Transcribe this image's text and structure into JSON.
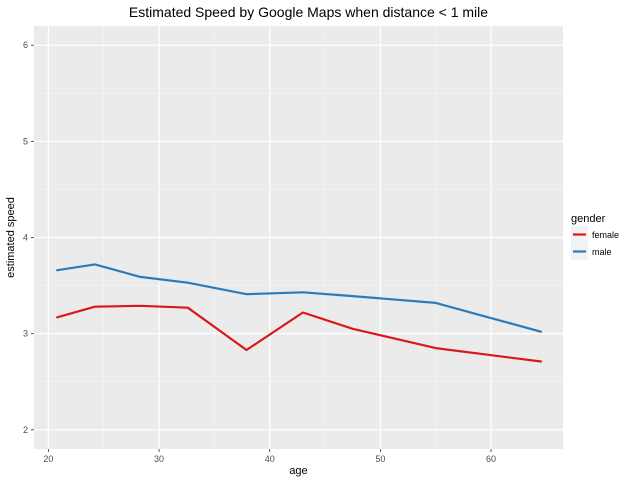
{
  "chart_data": {
    "type": "line",
    "title": "Estimated Speed by Google Maps when distance < 1 mile",
    "xlabel": "age",
    "ylabel": "estimated speed",
    "xlim": [
      18.7,
      66.5
    ],
    "ylim": [
      1.8,
      6.2
    ],
    "xticks": [
      20,
      30,
      40,
      50,
      60
    ],
    "yticks": [
      2,
      3,
      4,
      5,
      6
    ],
    "grid": true,
    "legend": {
      "title": "gender",
      "placement": "right"
    },
    "series": [
      {
        "name": "female",
        "color": "#d7191c",
        "points": [
          {
            "x": 20.8,
            "y": 3.17
          },
          {
            "x": 24.2,
            "y": 3.28
          },
          {
            "x": 28.3,
            "y": 3.29
          },
          {
            "x": 32.6,
            "y": 3.27
          },
          {
            "x": 37.9,
            "y": 2.83
          },
          {
            "x": 43.0,
            "y": 3.22
          },
          {
            "x": 47.5,
            "y": 3.05
          },
          {
            "x": 55.0,
            "y": 2.85
          },
          {
            "x": 64.5,
            "y": 2.71
          }
        ]
      },
      {
        "name": "male",
        "color": "#2b7bba",
        "points": [
          {
            "x": 20.8,
            "y": 3.66
          },
          {
            "x": 24.2,
            "y": 3.72
          },
          {
            "x": 28.3,
            "y": 3.59
          },
          {
            "x": 32.6,
            "y": 3.53
          },
          {
            "x": 37.9,
            "y": 3.41
          },
          {
            "x": 43.0,
            "y": 3.43
          },
          {
            "x": 47.5,
            "y": 3.39
          },
          {
            "x": 55.0,
            "y": 3.32
          },
          {
            "x": 64.5,
            "y": 3.02
          }
        ]
      }
    ]
  }
}
